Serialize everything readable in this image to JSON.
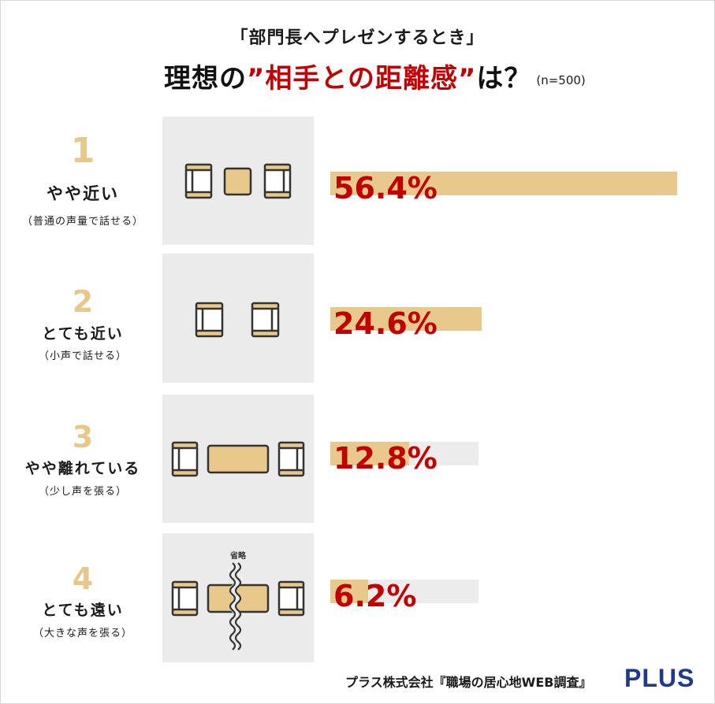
{
  "header": {
    "subtitle": "「部門長へプレゼンするとき」",
    "title_main_1": "理想の",
    "title_accent": "”相手との距離感”",
    "title_main_2": "は？",
    "sample_note": "(n=500)"
  },
  "chart_data": {
    "type": "bar",
    "orientation": "horizontal",
    "title": "理想の”相手との距離感”は？",
    "categories": [
      "やや近い",
      "とても近い",
      "やや離れている",
      "とても遠い"
    ],
    "values": [
      56.4,
      24.6,
      12.8,
      6.2
    ],
    "value_labels": [
      "56.4%",
      "24.6%",
      "12.8%",
      "6.2%"
    ],
    "xlim": [
      0,
      56.4
    ],
    "grid": false,
    "legend": "none"
  },
  "rows": [
    {
      "rank": "1",
      "label": "やや近い",
      "sublabel": "（普通の声量で話せる）",
      "value_label": "56.4%"
    },
    {
      "rank": "2",
      "label": "とても近い",
      "sublabel": "（小声で話せる）",
      "value_label": "24.6%"
    },
    {
      "rank": "3",
      "label": "やや離れている",
      "sublabel": "（少し声を張る）",
      "value_label": "12.8%"
    },
    {
      "rank": "4",
      "label": "とても遠い",
      "sublabel": "（大きな声を張る）",
      "value_label": "6.2%",
      "omitted_label": "省略"
    }
  ],
  "colors": {
    "rank": "#e6c98a",
    "bar": "#e8c98b",
    "track": "#ececec",
    "value": "#c00000",
    "panel": "#ebebeb",
    "logo": "#1f3a8a"
  },
  "footer": {
    "source": "プラス株式会社『職場の居心地WEB調査』",
    "logo": "PLUS"
  }
}
